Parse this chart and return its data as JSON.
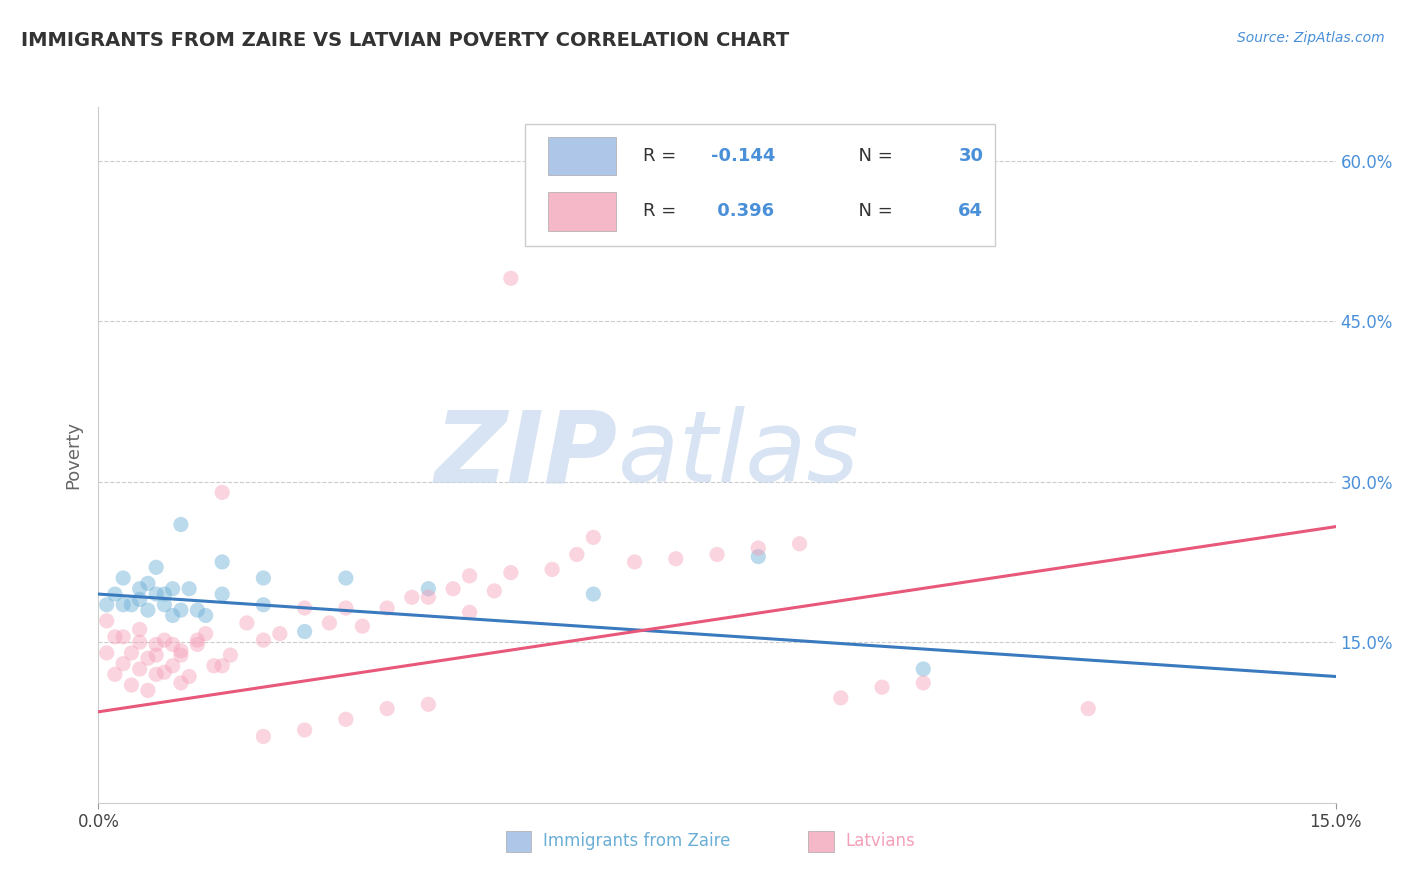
{
  "title": "IMMIGRANTS FROM ZAIRE VS LATVIAN POVERTY CORRELATION CHART",
  "source_text": "Source: ZipAtlas.com",
  "ylabel": "Poverty",
  "xlim": [
    0.0,
    0.15
  ],
  "ylim": [
    0.0,
    0.65
  ],
  "ytick_labels_right": [
    "60.0%",
    "45.0%",
    "30.0%",
    "15.0%"
  ],
  "ytick_vals_right": [
    0.6,
    0.45,
    0.3,
    0.15
  ],
  "watermark_zip": "ZIP",
  "watermark_atlas": "atlas",
  "background_color": "#ffffff",
  "grid_color": "#cccccc",
  "scatter_size": 120,
  "scatter_alpha": 0.45,
  "blue_color": "#6aaed6",
  "pink_color": "#f4a0b8",
  "blue_line_color": "#3a7abf",
  "pink_line_color": "#e8587a",
  "blue_legend_fill": "#aec6e8",
  "pink_legend_fill": "#f4b8c8",
  "blue_scatter_x": [
    0.001,
    0.002,
    0.003,
    0.003,
    0.004,
    0.005,
    0.005,
    0.006,
    0.006,
    0.007,
    0.007,
    0.008,
    0.008,
    0.009,
    0.009,
    0.01,
    0.01,
    0.011,
    0.012,
    0.013,
    0.015,
    0.015,
    0.02,
    0.02,
    0.025,
    0.03,
    0.04,
    0.06,
    0.08,
    0.1
  ],
  "blue_scatter_y": [
    0.185,
    0.195,
    0.185,
    0.21,
    0.185,
    0.19,
    0.2,
    0.18,
    0.205,
    0.195,
    0.22,
    0.185,
    0.195,
    0.2,
    0.175,
    0.18,
    0.26,
    0.2,
    0.18,
    0.175,
    0.195,
    0.225,
    0.185,
    0.21,
    0.16,
    0.21,
    0.2,
    0.195,
    0.23,
    0.125
  ],
  "pink_scatter_x": [
    0.001,
    0.001,
    0.002,
    0.002,
    0.003,
    0.003,
    0.004,
    0.004,
    0.005,
    0.005,
    0.006,
    0.006,
    0.007,
    0.007,
    0.008,
    0.008,
    0.009,
    0.01,
    0.01,
    0.011,
    0.012,
    0.013,
    0.014,
    0.015,
    0.016,
    0.018,
    0.02,
    0.022,
    0.025,
    0.028,
    0.03,
    0.032,
    0.035,
    0.038,
    0.04,
    0.043,
    0.045,
    0.048,
    0.05,
    0.055,
    0.058,
    0.06,
    0.065,
    0.07,
    0.075,
    0.08,
    0.085,
    0.09,
    0.095,
    0.1,
    0.01,
    0.012,
    0.015,
    0.02,
    0.025,
    0.03,
    0.035,
    0.04,
    0.045,
    0.05,
    0.005,
    0.007,
    0.009,
    0.12
  ],
  "pink_scatter_y": [
    0.17,
    0.14,
    0.12,
    0.155,
    0.13,
    0.155,
    0.11,
    0.14,
    0.125,
    0.15,
    0.105,
    0.135,
    0.12,
    0.148,
    0.122,
    0.152,
    0.128,
    0.112,
    0.142,
    0.118,
    0.152,
    0.158,
    0.128,
    0.29,
    0.138,
    0.168,
    0.152,
    0.158,
    0.182,
    0.168,
    0.182,
    0.165,
    0.182,
    0.192,
    0.192,
    0.2,
    0.212,
    0.198,
    0.215,
    0.218,
    0.232,
    0.248,
    0.225,
    0.228,
    0.232,
    0.238,
    0.242,
    0.098,
    0.108,
    0.112,
    0.138,
    0.148,
    0.128,
    0.062,
    0.068,
    0.078,
    0.088,
    0.092,
    0.178,
    0.49,
    0.162,
    0.138,
    0.148,
    0.088
  ],
  "blue_line_x": [
    0.0,
    0.15
  ],
  "blue_line_y": [
    0.195,
    0.118
  ],
  "pink_line_x": [
    0.0,
    0.15
  ],
  "pink_line_y": [
    0.085,
    0.258
  ]
}
